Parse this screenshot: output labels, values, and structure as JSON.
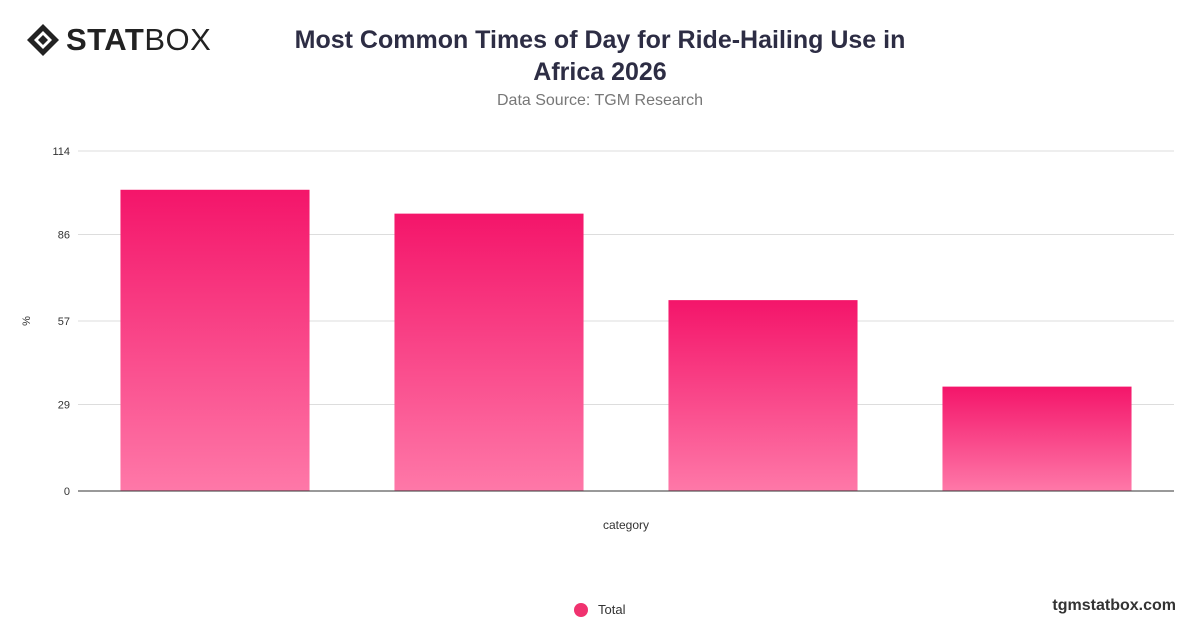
{
  "brand": {
    "logo_bold": "STAT",
    "logo_light": "BOX",
    "footer": "tgmstatbox.com"
  },
  "header": {
    "title": "Most Common Times of Day for Ride-Hailing Use in Africa 2026",
    "subtitle": "Data Source: TGM Research"
  },
  "legend": {
    "label": "Total"
  },
  "colors": {
    "bar_top": "#f4156a",
    "bar_bottom": "#fe78a8",
    "grid": "#dddddd",
    "axis": "#333333"
  },
  "chart_data": {
    "type": "bar",
    "categories": [
      "",
      "",
      "",
      ""
    ],
    "series": [
      {
        "name": "Total",
        "values": [
          101,
          93,
          64,
          35
        ]
      }
    ],
    "xlabel": "category",
    "ylabel": "%",
    "yticks": [
      0,
      29,
      57,
      86,
      114
    ],
    "ylim": [
      0,
      114
    ],
    "grid": true,
    "legend_position": "bottom"
  }
}
